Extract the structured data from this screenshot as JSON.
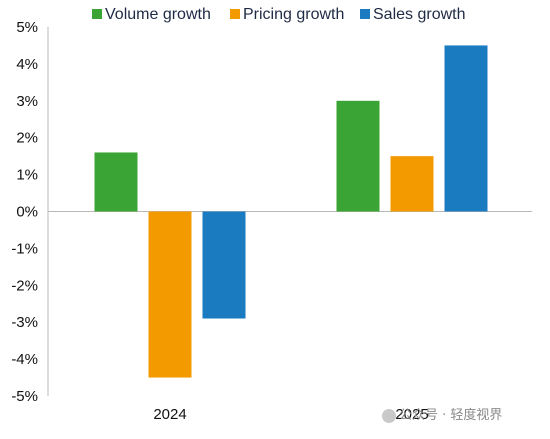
{
  "chart_data": {
    "type": "bar",
    "categories": [
      "2024",
      "2025"
    ],
    "series": [
      {
        "name": "Volume growth",
        "color": "#3aa535",
        "values": [
          1.6,
          3.0
        ]
      },
      {
        "name": "Pricing growth",
        "color": "#f39a00",
        "values": [
          -4.5,
          1.5
        ]
      },
      {
        "name": "Sales growth",
        "color": "#1a7bc1",
        "values": [
          -2.9,
          4.5
        ]
      }
    ],
    "ylim": [
      -5,
      5
    ],
    "yticks": [
      5,
      4,
      3,
      2,
      1,
      0,
      -1,
      -2,
      -3,
      -4,
      -5
    ],
    "ytick_labels": [
      "5%",
      "4%",
      "3%",
      "2%",
      "1%",
      "0%",
      "-1%",
      "-2%",
      "-3%",
      "-4%",
      "-5%"
    ],
    "legend_position": "top",
    "grid": false,
    "title": "",
    "xlabel": "",
    "ylabel": ""
  },
  "watermark": {
    "text": "公众号 · 轻度视界"
  }
}
